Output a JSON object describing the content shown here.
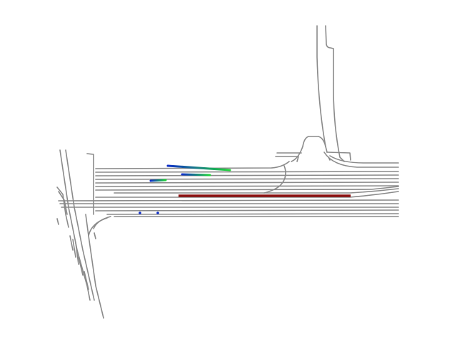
{
  "scene": {
    "colors": {
      "background": "#ffffff",
      "lane": "#8a8a8a",
      "ego_track": "#8b0f0f",
      "track_start": "#1030c8",
      "track_end": "#22d63a",
      "agent_point": "#1030c8"
    },
    "layers": [
      "road-lanes",
      "agent-trajectories",
      "ego-trajectory"
    ]
  }
}
